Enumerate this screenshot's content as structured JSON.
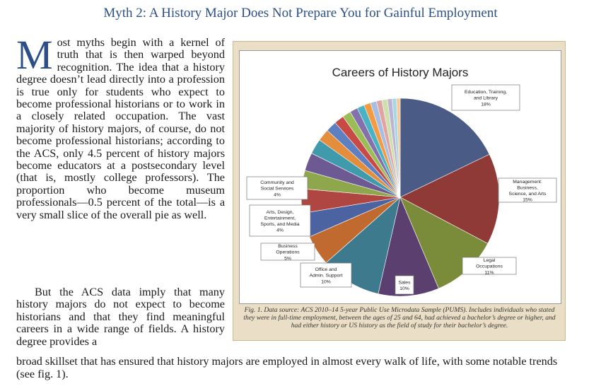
{
  "headline": "Myth 2: A History Major Does Not Prepare You for Gainful Employment",
  "body": {
    "drop_cap": "M",
    "para1": "ost myths begin with a kernel of truth that is then warped beyond recognition. The idea that a history degree doesn’t lead directly into a profession is true only for students who expect to become professional historians or to work in a closely related occupation. The vast majority of history majors, of course, do not become professional historians; according to the ACS, only 4.5 percent of history majors become educators at a postsecondary level (that is, mostly college professors). The proportion who become museum professionals—0.5 percent of the total—is a very small slice of the overall pie as well.",
    "para2_a": "But the ACS data imply that many history majors do not expect to become historians and that they find meaningful careers in a wide range of fields. A history degree provides a",
    "para2_b": "broad skillset that has ensured that history majors are employed in almost every walk of life, with some notable trends (see fig. 1)."
  },
  "figure": {
    "caption": "Fig. 1. Data source: ACS 2010–14 5-year Public Use Microdata Sample (PUMS). Includes individuals who stated they were in full-time employment, between the ages of 25 and 64, had achieved a bachelor’s degree or higher, and had either history or US history as the field of study for their bachelor’s degree."
  },
  "chart_data": {
    "type": "pie",
    "title": "Careers of History Majors",
    "slices": [
      {
        "label": "Education, Training, and Library",
        "value": 18,
        "pct_label": "18%",
        "color": "#4a5b86"
      },
      {
        "label": "Management: Business, Science, and Arts",
        "value": 15,
        "pct_label": "15%",
        "color": "#903a38"
      },
      {
        "label": "Legal Occupations",
        "value": 11,
        "pct_label": "11%",
        "color": "#7a8c3a"
      },
      {
        "label": "Sales",
        "value": 10,
        "pct_label": "10%",
        "color": "#5b3f6e"
      },
      {
        "label": "Office and Admin. Support",
        "value": 10,
        "pct_label": "10%",
        "color": "#3e7a8e"
      },
      {
        "label": "Business Operations",
        "value": 5,
        "pct_label": "5%",
        "color": "#c06a30"
      },
      {
        "label": "Arts, Design, Entertainment, Sports, and Media",
        "value": 4,
        "pct_label": "4%",
        "color": "#4b63a0"
      },
      {
        "label": "Community and Social Services",
        "value": 4,
        "pct_label": "4%",
        "color": "#b04642"
      },
      {
        "label": "",
        "value": 3,
        "pct_label": "",
        "color": "#8fa74c"
      },
      {
        "label": "",
        "value": 3,
        "pct_label": "",
        "color": "#6e5a92"
      },
      {
        "label": "",
        "value": 2.5,
        "pct_label": "",
        "color": "#3f9aac"
      },
      {
        "label": "",
        "value": 2,
        "pct_label": "",
        "color": "#e48d3c"
      },
      {
        "label": "",
        "value": 1.8,
        "pct_label": "",
        "color": "#5e80c1"
      },
      {
        "label": "",
        "value": 1.6,
        "pct_label": "",
        "color": "#c74a45"
      },
      {
        "label": "",
        "value": 1.4,
        "pct_label": "",
        "color": "#9bbd58"
      },
      {
        "label": "",
        "value": 1.3,
        "pct_label": "",
        "color": "#8470aa"
      },
      {
        "label": "",
        "value": 1.2,
        "pct_label": "",
        "color": "#47b3c5"
      },
      {
        "label": "",
        "value": 1.1,
        "pct_label": "",
        "color": "#f39a43"
      },
      {
        "label": "",
        "value": 1,
        "pct_label": "",
        "color": "#a7bee0"
      },
      {
        "label": "",
        "value": 0.9,
        "pct_label": "",
        "color": "#e2a4a3"
      },
      {
        "label": "",
        "value": 0.9,
        "pct_label": "",
        "color": "#cde0ad"
      },
      {
        "label": "",
        "value": 0.8,
        "pct_label": "",
        "color": "#bdb3d3"
      },
      {
        "label": "",
        "value": 0.7,
        "pct_label": "",
        "color": "#a6d8e2"
      },
      {
        "label": "",
        "value": 0.6,
        "pct_label": "",
        "color": "#f7c79b"
      }
    ]
  }
}
